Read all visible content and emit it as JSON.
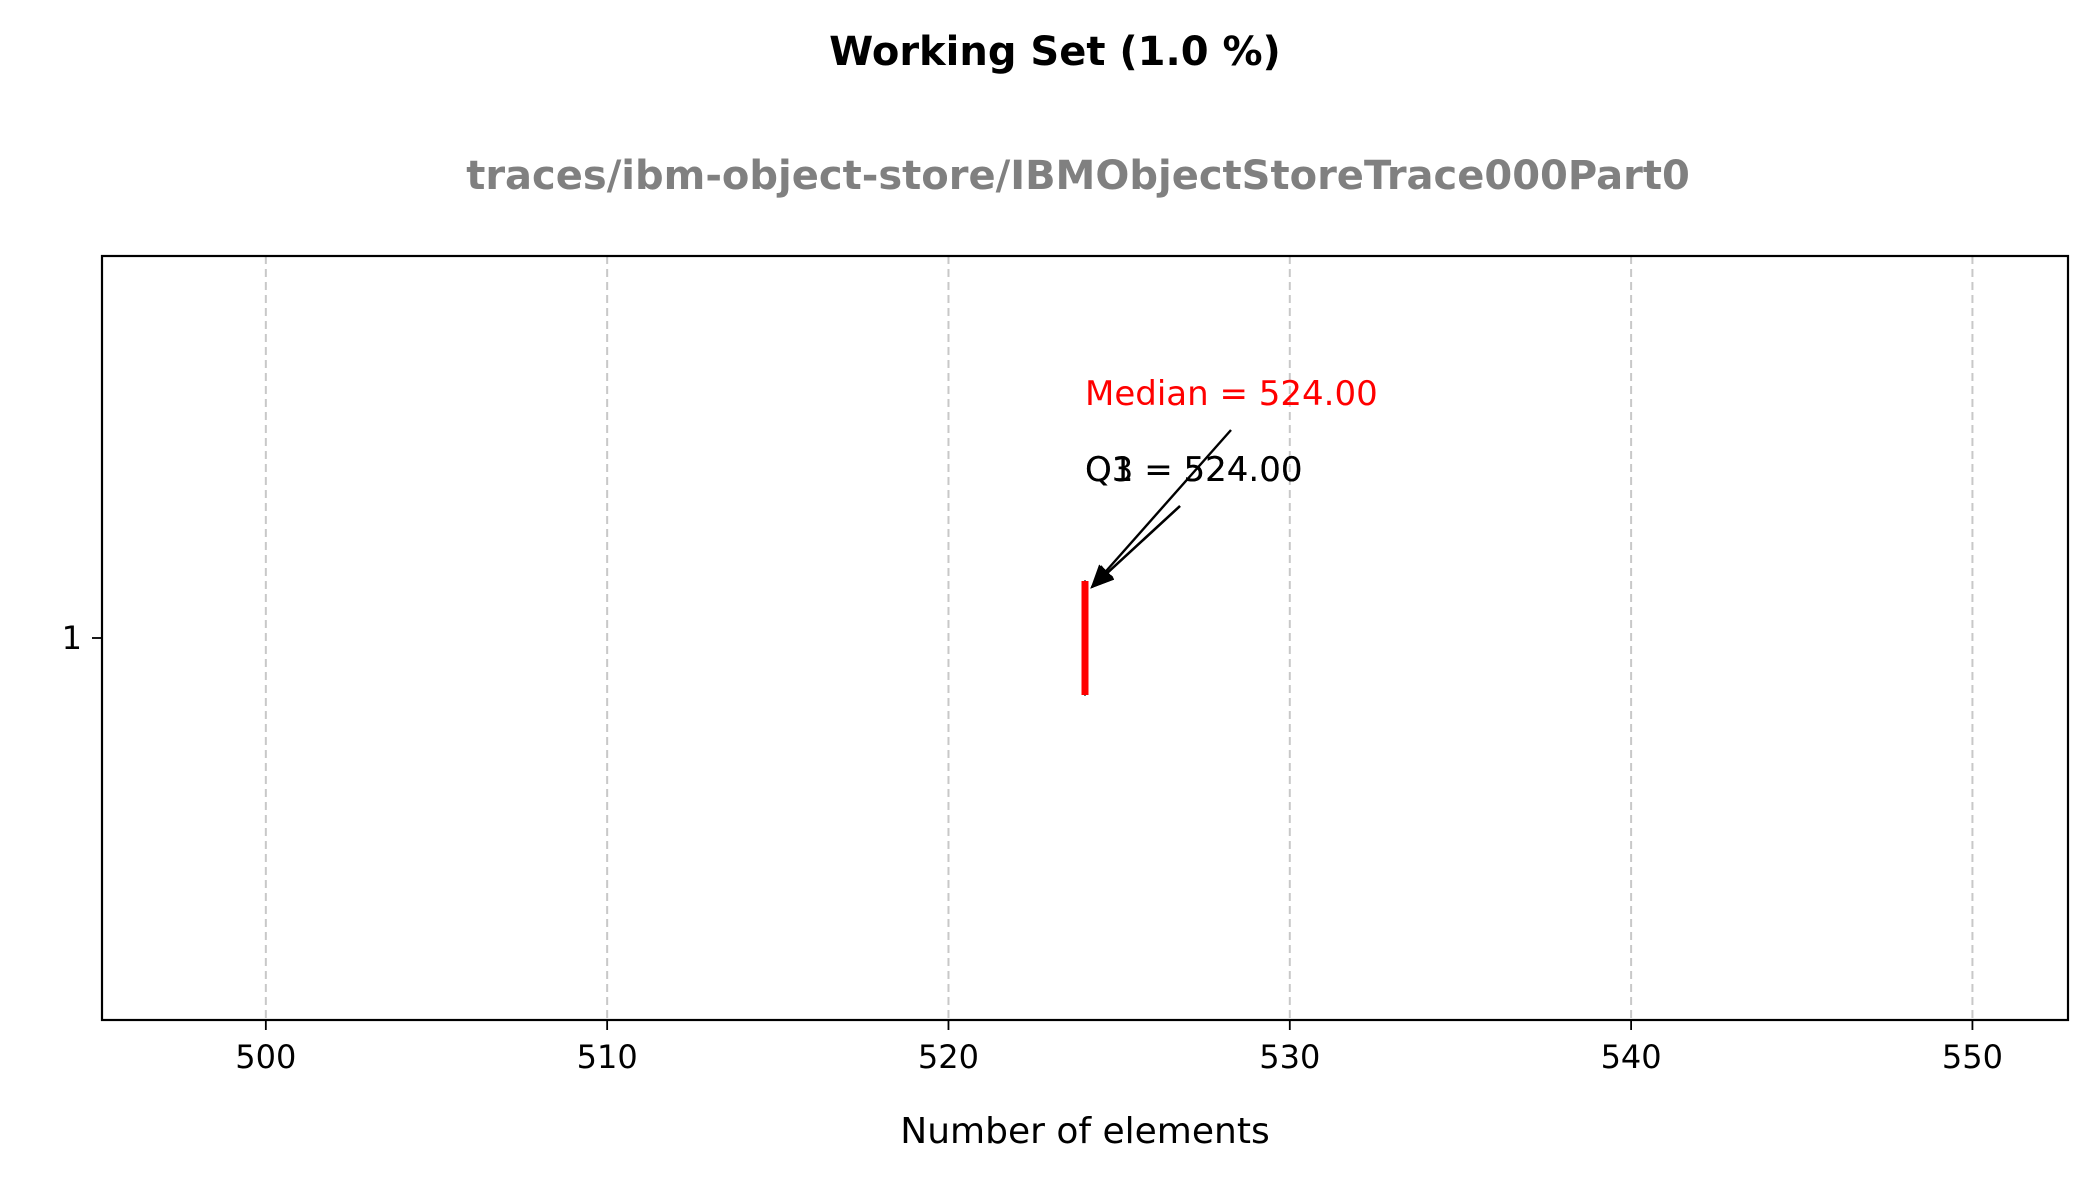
{
  "chart_data": {
    "type": "box",
    "title": "Working Set (1.0 %)",
    "subtitle": "traces/ibm-object-store/IBMObjectStoreTrace000Part0",
    "xlabel": "Number of elements",
    "ylabel": "",
    "xlim": [
      495.2,
      552.8
    ],
    "x_ticks": [
      500,
      510,
      520,
      530,
      540,
      550
    ],
    "y_ticks": [
      1
    ],
    "grid": {
      "x": true,
      "y": false,
      "style": "dashed"
    },
    "boxes": [
      {
        "position": 1,
        "min": 524,
        "q1": 524,
        "median": 524,
        "q3": 524,
        "max": 524
      }
    ],
    "annotations": [
      {
        "text": "Median = 524.00",
        "color": "#ff0000",
        "target_x": 524
      },
      {
        "text": "Q1 = 524.00",
        "color": "#000000",
        "target_x": 524
      },
      {
        "text": "Q3 = 524.00",
        "color": "#000000",
        "target_x": 524
      }
    ],
    "colors": {
      "median": "#ff0000",
      "text": "#000000",
      "subtitle": "#808080",
      "grid": "#c8c8c8"
    }
  }
}
